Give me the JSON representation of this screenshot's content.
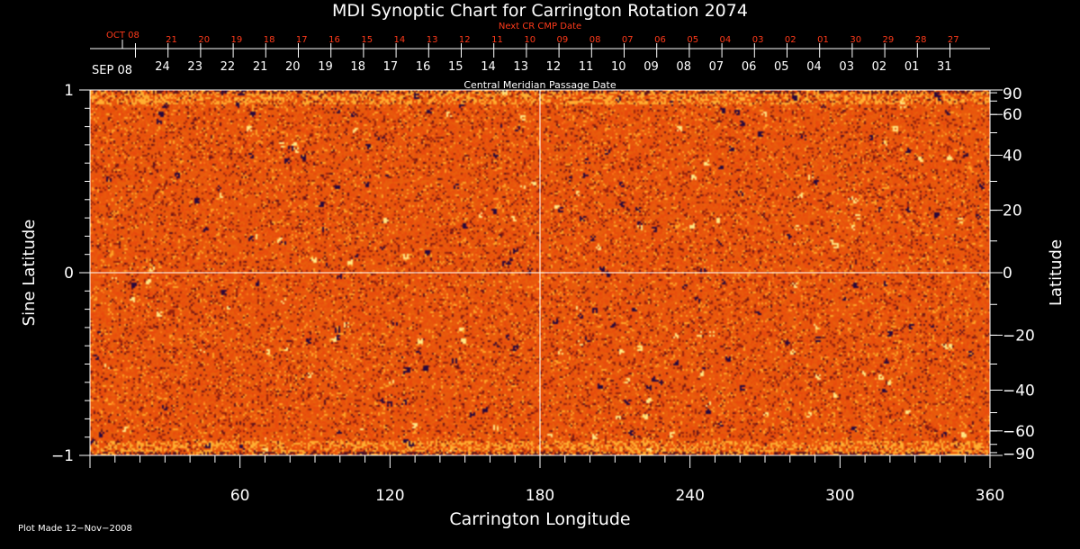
{
  "chart_data": {
    "type": "heatmap",
    "title": "MDI Synoptic Chart for Carrington Rotation 2074",
    "xlabel": "Carrington Longitude",
    "ylabel_left": "Sine Latitude",
    "ylabel_right": "Latitude",
    "xlim": [
      0,
      360
    ],
    "ylim": [
      -1,
      1
    ],
    "x_ticks": [
      "60",
      "120",
      "180",
      "240",
      "300",
      "360"
    ],
    "y_ticks_left": [
      "1",
      "0",
      "−1"
    ],
    "y_ticks_right": [
      "90",
      "60",
      "40",
      "20",
      "0",
      "−20",
      "−40",
      "−60",
      "−90"
    ],
    "central_meridian_date_label": "Central Meridian Passage Date",
    "cmp_month_label": "SEP 08",
    "cmp_dates": [
      "24",
      "23",
      "22",
      "21",
      "20",
      "19",
      "18",
      "17",
      "16",
      "15",
      "14",
      "13",
      "12",
      "11",
      "10",
      "09",
      "08",
      "07",
      "06",
      "05",
      "04",
      "03",
      "02",
      "01",
      "31"
    ],
    "next_cr_label": "Next CR CMP Date",
    "next_cr_month_label": "OCT 08",
    "next_cr_dates": [
      "21",
      "20",
      "19",
      "18",
      "17",
      "16",
      "15",
      "14",
      "13",
      "12",
      "11",
      "10",
      "09",
      "08",
      "07",
      "06",
      "05",
      "04",
      "03",
      "02",
      "01",
      "30",
      "29",
      "28",
      "27"
    ],
    "footer": "Plot Made 12−Nov−2008",
    "colors": {
      "background": "#000000",
      "text": "#ffffff",
      "next_cr": "#ff3a1a",
      "map_base": "#e84a10"
    }
  }
}
